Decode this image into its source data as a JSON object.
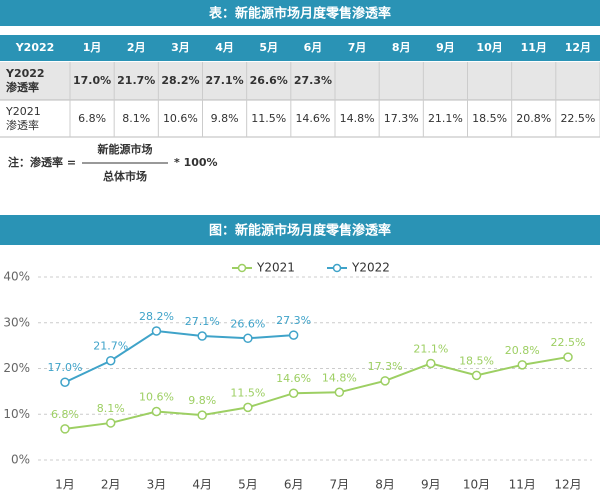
{
  "table": {
    "title": "表：新能源市场月度零售渗透率",
    "header": [
      "Y2022",
      "1月",
      "2月",
      "3月",
      "4月",
      "5月",
      "6月",
      "7月",
      "8月",
      "9月",
      "10月",
      "11月",
      "12月"
    ],
    "rows": [
      {
        "label": [
          "Y2022",
          "渗透率"
        ],
        "cells": [
          "17.0%",
          "21.7%",
          "28.2%",
          "27.1%",
          "26.6%",
          "27.3%"
        ]
      },
      {
        "label": [
          "Y2021",
          "渗透率"
        ],
        "cells": [
          "6.8%",
          "8.1%",
          "10.6%",
          "9.8%",
          "11.5%",
          "14.6%",
          "14.8%",
          "17.3%",
          "21.1%",
          "18.5%",
          "20.8%",
          "22.5%"
        ]
      }
    ]
  },
  "note": {
    "label": "注：渗透率 =",
    "numerator": "新能源市场",
    "denominator": "总体市场",
    "suffix": "* 100%"
  },
  "chart_data": {
    "type": "line",
    "title": "图：新能源市场月度零售渗透率",
    "categories": [
      "1月",
      "2月",
      "3月",
      "4月",
      "5月",
      "6月",
      "7月",
      "8月",
      "9月",
      "10月",
      "11月",
      "12月"
    ],
    "series": [
      {
        "name": "Y2021",
        "color": "#9dcf63",
        "values": [
          6.8,
          8.1,
          10.6,
          9.8,
          11.5,
          14.6,
          14.8,
          17.3,
          21.1,
          18.5,
          20.8,
          22.5
        ],
        "value_labels": [
          "6.8%",
          "8.1%",
          "10.6%",
          "9.8%",
          "11.5%",
          "14.6%",
          "14.8%",
          "17.3%",
          "21.1%",
          "18.5%",
          "20.8%",
          "22.5%"
        ]
      },
      {
        "name": "Y2022",
        "color": "#3fa3c9",
        "values": [
          17.0,
          21.7,
          28.2,
          27.1,
          26.6,
          27.3,
          null,
          null,
          null,
          null,
          null,
          null
        ],
        "value_labels": [
          "17.0%",
          "21.7%",
          "28.2%",
          "27.1%",
          "26.6%",
          "27.3%",
          null,
          null,
          null,
          null,
          null,
          null
        ]
      }
    ],
    "ylim": [
      0,
      40
    ],
    "yticks": [
      {
        "value": 0,
        "label": "0%"
      },
      {
        "value": 10,
        "label": "10%"
      },
      {
        "value": 20,
        "label": "20%"
      },
      {
        "value": 30,
        "label": "30%"
      },
      {
        "value": 40,
        "label": "40%"
      }
    ],
    "grid": true,
    "legend": "top"
  }
}
